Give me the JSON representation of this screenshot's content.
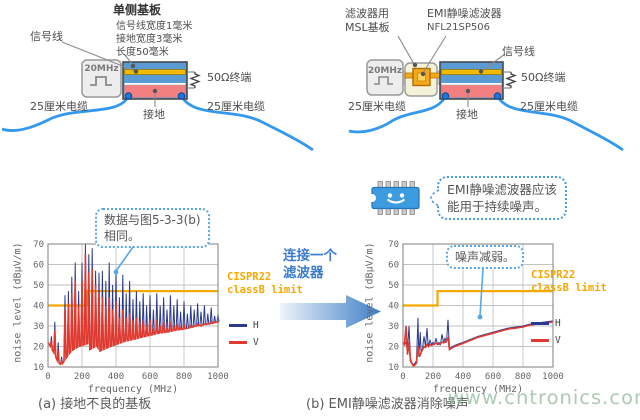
{
  "diagram_a": {
    "title": "单侧基板",
    "specs": [
      "信号线宽度1毫米",
      "接地宽度3毫米",
      "长度50毫米"
    ],
    "signal_label": "信号线",
    "source_label": "20MHz",
    "termination_label": "50Ω终端",
    "cable_left": "25厘米电缆",
    "cable_right": "25厘米电缆",
    "ground_label": "接地"
  },
  "diagram_b": {
    "board_label_line1": "滤波器用",
    "board_label_line2": "MSL基板",
    "filter_label": "EMI静噪滤波器",
    "filter_part": "NFL21SP506",
    "signal_label": "信号线",
    "source_label": "20MHz",
    "termination_label": "50Ω终端",
    "cable_left": "25厘米电缆",
    "cable_right": "25厘米电缆",
    "ground_label": "接地"
  },
  "chip_callout": {
    "line1": "EMI静噪滤波器应该",
    "line2": "能用于持续噪声。"
  },
  "arrow_label": {
    "line1": "连接一个",
    "line2": "滤波器"
  },
  "chart_a_callout": {
    "line1": "数据与图5-3-3(b)",
    "line2": "相同。"
  },
  "chart_b_callout": {
    "text": "噪声减弱。"
  },
  "captions": {
    "a": "(a) 接地不良的基板",
    "b": "(b) EMI静噪滤波器消除噪声"
  },
  "watermark": "www.cntronics.com",
  "colors": {
    "substrate_blue": "#5b9bd5",
    "signal_yellow": "#f2bb00",
    "ground_red": "#f28080",
    "cable_blue": "#3399ee",
    "series_h": "#2b3a8f",
    "series_v": "#e0392f",
    "limit_orange": "#f5a800",
    "chip_blue": "#3d9be0",
    "accent_blue": "#4a9be0"
  },
  "chart_data": [
    {
      "name": "chart-a",
      "type": "line",
      "xlabel": "frequency (MHz)",
      "ylabel": "noise level (dBμV/m)",
      "xlim": [
        0,
        1000
      ],
      "ylim": [
        10,
        70
      ],
      "xticks": [
        0,
        200,
        400,
        600,
        800,
        1000
      ],
      "yticks": [
        10,
        20,
        30,
        40,
        50,
        60,
        70
      ],
      "grid": true,
      "limit": {
        "label_line1": "CISPR22",
        "label_line2": "classB limit",
        "color": "#f5a800",
        "points": [
          [
            0,
            40
          ],
          [
            230,
            40
          ],
          [
            230,
            47
          ],
          [
            1000,
            47
          ]
        ]
      },
      "legend": [
        {
          "label": "H",
          "color": "#2b3a8f"
        },
        {
          "label": "V",
          "color": "#e0392f"
        }
      ],
      "baseline": [
        [
          0,
          22
        ],
        [
          15,
          20
        ],
        [
          40,
          16
        ],
        [
          60,
          12
        ],
        [
          80,
          11
        ],
        [
          100,
          13.5
        ],
        [
          120,
          16
        ],
        [
          140,
          18
        ],
        [
          160,
          19
        ],
        [
          180,
          20
        ],
        [
          200,
          20.5
        ],
        [
          235,
          21.5
        ],
        [
          245,
          18.5
        ],
        [
          290,
          20.5
        ],
        [
          300,
          17.5
        ],
        [
          350,
          19.5
        ],
        [
          400,
          21
        ],
        [
          450,
          22.5
        ],
        [
          500,
          23.5
        ],
        [
          550,
          24.5
        ],
        [
          600,
          25.5
        ],
        [
          650,
          26.5
        ],
        [
          700,
          27
        ],
        [
          750,
          28
        ],
        [
          800,
          28.5
        ],
        [
          850,
          29.5
        ],
        [
          900,
          30.5
        ],
        [
          950,
          31
        ],
        [
          1000,
          32
        ]
      ],
      "series": [
        {
          "name": "H",
          "color": "#2b3a8f",
          "spike_step": 20,
          "peaks": [
            25,
            32,
            22,
            15,
            45,
            47,
            54,
            61,
            47,
            61,
            70,
            65,
            68,
            57,
            56,
            57,
            52,
            61,
            50,
            57,
            44,
            55,
            46,
            52,
            43,
            47,
            42,
            46,
            40,
            45,
            38,
            46,
            40,
            44,
            38,
            45,
            40,
            43,
            37,
            42,
            36,
            40,
            38,
            41,
            37,
            40,
            36,
            39,
            35,
            36
          ]
        },
        {
          "name": "V",
          "color": "#e0392f",
          "spike_step": 20,
          "peaks": [
            23,
            28,
            18,
            13,
            38,
            41,
            46,
            52,
            40,
            52,
            65,
            56,
            58,
            50,
            46,
            44,
            40,
            44,
            38,
            42,
            34,
            38,
            34,
            36,
            33,
            34,
            32,
            33,
            30,
            33,
            29,
            33,
            30,
            32,
            29,
            32,
            30,
            31,
            29,
            31,
            29,
            30,
            30,
            31,
            30,
            31,
            31,
            32,
            32,
            32
          ]
        }
      ]
    },
    {
      "name": "chart-b",
      "type": "line",
      "xlabel": "frequency (MHz)",
      "ylabel": "noise level (dBμV/m)",
      "xlim": [
        0,
        1000
      ],
      "ylim": [
        10,
        70
      ],
      "xticks": [
        0,
        200,
        400,
        600,
        800,
        1000
      ],
      "yticks": [
        10,
        20,
        30,
        40,
        50,
        60,
        70
      ],
      "grid": true,
      "limit": {
        "label_line1": "CISPR22",
        "label_line2": "classB limit",
        "color": "#f5a800",
        "points": [
          [
            0,
            40
          ],
          [
            230,
            40
          ],
          [
            230,
            47
          ],
          [
            1000,
            47
          ]
        ]
      },
      "legend": [
        {
          "label": "H",
          "color": "#2b3a8f"
        },
        {
          "label": "V",
          "color": "#e0392f"
        }
      ],
      "series": [
        {
          "name": "H",
          "color": "#2b3a8f",
          "points": [
            [
              0,
              22
            ],
            [
              10,
              21
            ],
            [
              20,
              22
            ],
            [
              30,
              18
            ],
            [
              40,
              30
            ],
            [
              50,
              14
            ],
            [
              60,
              12
            ],
            [
              70,
              11
            ],
            [
              80,
              12
            ],
            [
              90,
              13
            ],
            [
              100,
              34
            ],
            [
              105,
              15
            ],
            [
              115,
              27
            ],
            [
              120,
              18
            ],
            [
              130,
              19
            ],
            [
              140,
              25
            ],
            [
              150,
              20
            ],
            [
              160,
              29
            ],
            [
              168,
              20
            ],
            [
              180,
              23
            ],
            [
              190,
              21
            ],
            [
              200,
              22
            ],
            [
              210,
              21
            ],
            [
              220,
              24
            ],
            [
              230,
              21
            ],
            [
              240,
              22
            ],
            [
              250,
              21
            ],
            [
              260,
              26
            ],
            [
              270,
              22
            ],
            [
              280,
              24
            ],
            [
              290,
              22
            ],
            [
              300,
              33
            ],
            [
              310,
              19
            ],
            [
              330,
              20
            ],
            [
              360,
              21
            ],
            [
              400,
              22
            ],
            [
              450,
              23.5
            ],
            [
              500,
              25
            ],
            [
              550,
              26
            ],
            [
              600,
              27
            ],
            [
              650,
              28
            ],
            [
              700,
              29
            ],
            [
              750,
              29.5
            ],
            [
              800,
              30
            ],
            [
              850,
              31
            ],
            [
              900,
              31.5
            ],
            [
              950,
              32
            ],
            [
              1000,
              32.5
            ]
          ]
        },
        {
          "name": "V",
          "color": "#e0392f",
          "points": [
            [
              0,
              22
            ],
            [
              10,
              21
            ],
            [
              20,
              30
            ],
            [
              30,
              16
            ],
            [
              40,
              22
            ],
            [
              50,
              13
            ],
            [
              60,
              11.5
            ],
            [
              70,
              10.5
            ],
            [
              80,
              11
            ],
            [
              90,
              12
            ],
            [
              100,
              20
            ],
            [
              110,
              15
            ],
            [
              120,
              17
            ],
            [
              130,
              18.5
            ],
            [
              140,
              20
            ],
            [
              150,
              19.5
            ],
            [
              160,
              21
            ],
            [
              170,
              20
            ],
            [
              180,
              21
            ],
            [
              190,
              20.5
            ],
            [
              200,
              21
            ],
            [
              220,
              21.5
            ],
            [
              240,
              21
            ],
            [
              260,
              22
            ],
            [
              280,
              22
            ],
            [
              300,
              24
            ],
            [
              310,
              18.5
            ],
            [
              330,
              19.5
            ],
            [
              360,
              20.5
            ],
            [
              400,
              21.5
            ],
            [
              450,
              23
            ],
            [
              500,
              24.5
            ],
            [
              550,
              25.5
            ],
            [
              600,
              26.5
            ],
            [
              650,
              27.5
            ],
            [
              700,
              28.5
            ],
            [
              750,
              29
            ],
            [
              800,
              29.5
            ],
            [
              850,
              30.5
            ],
            [
              900,
              31
            ],
            [
              950,
              31.5
            ],
            [
              1000,
              32
            ]
          ]
        }
      ]
    }
  ]
}
